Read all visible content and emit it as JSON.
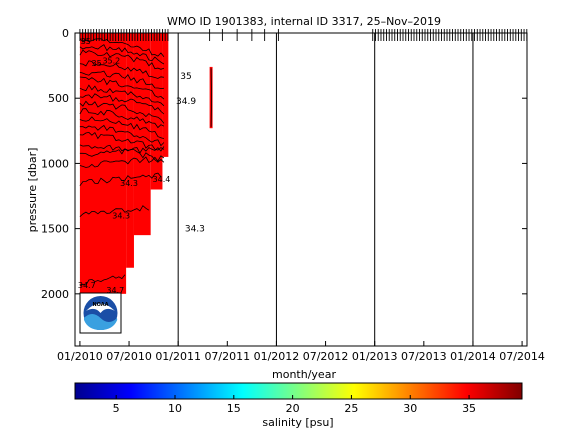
{
  "chart_data": {
    "type": "heatmap",
    "title": "WMO ID 1901383, internal ID 3317, 25–Nov–2019",
    "xlabel": "month/year",
    "ylabel": "pressure [dbar]",
    "x_ticks": [
      "01/2010",
      "07/2010",
      "01/2011",
      "07/2011",
      "01/2012",
      "07/2012",
      "01/2013",
      "07/2013",
      "01/2014",
      "07/2014"
    ],
    "x_tick_years": [
      2010.0,
      2010.5,
      2011.0,
      2011.5,
      2012.0,
      2012.5,
      2013.0,
      2013.5,
      2014.0,
      2014.5
    ],
    "xlim": [
      2009.95,
      2014.55
    ],
    "y_ticks": [
      0,
      500,
      1000,
      1500,
      2000
    ],
    "ylim": [
      2400,
      0
    ],
    "year_lines": [
      2011.0,
      2012.0,
      2013.0,
      2014.0
    ],
    "colorbar": {
      "label": "salinity [psu]",
      "ticks": [
        5,
        10,
        15,
        20,
        25,
        30,
        35
      ],
      "range": [
        1.5,
        39.5
      ],
      "colors": [
        "#00008f",
        "#0000ff",
        "#0080ff",
        "#00ffff",
        "#80ff80",
        "#ffff00",
        "#ff8000",
        "#ff0000",
        "#800000"
      ]
    },
    "salinity_fill": {
      "color": "#ff0000",
      "value_psu": 35,
      "regions": [
        {
          "x": [
            2010.0,
            2010.47
          ],
          "p": [
            0,
            2000
          ]
        },
        {
          "x": [
            2010.47,
            2010.55
          ],
          "p": [
            0,
            1800
          ]
        },
        {
          "x": [
            2010.55,
            2010.72
          ],
          "p": [
            0,
            1550
          ]
        },
        {
          "x": [
            2010.72,
            2010.84
          ],
          "p": [
            0,
            1200
          ]
        },
        {
          "x": [
            2010.84,
            2010.9
          ],
          "p": [
            0,
            950
          ]
        },
        {
          "x": [
            2011.32,
            2011.35
          ],
          "p": [
            260,
            730
          ]
        }
      ]
    },
    "contour_labels": [
      {
        "text": "34.7",
        "year": 2010.07,
        "p": 1932
      },
      {
        "text": "34.7",
        "year": 2010.36,
        "p": 1972
      },
      {
        "text": "34.4",
        "year": 2010.83,
        "p": 1120
      },
      {
        "text": "34.3",
        "year": 2010.5,
        "p": 1150
      },
      {
        "text": "34.3",
        "year": 2010.42,
        "p": 1400
      },
      {
        "text": "34.3",
        "year": 2011.17,
        "p": 1500
      },
      {
        "text": "35",
        "year": 2011.08,
        "p": 330
      },
      {
        "text": "34.9",
        "year": 2011.08,
        "p": 520
      },
      {
        "text": "35",
        "year": 2010.06,
        "p": 60
      },
      {
        "text": "35",
        "year": 2010.17,
        "p": 230
      },
      {
        "text": "35.2",
        "year": 2010.32,
        "p": 210
      }
    ],
    "contour_depths": [
      50,
      100,
      150,
      230,
      300,
      360,
      420,
      480,
      540,
      600,
      660,
      720,
      780,
      860,
      940,
      1020,
      1150,
      1400,
      1920
    ],
    "profile_ticks_start_years": [
      2010.0,
      2012.98
    ],
    "profile_ticks_dense_until": [
      2010.9,
      2014.55
    ]
  },
  "logo": {
    "text": "NOAA"
  }
}
